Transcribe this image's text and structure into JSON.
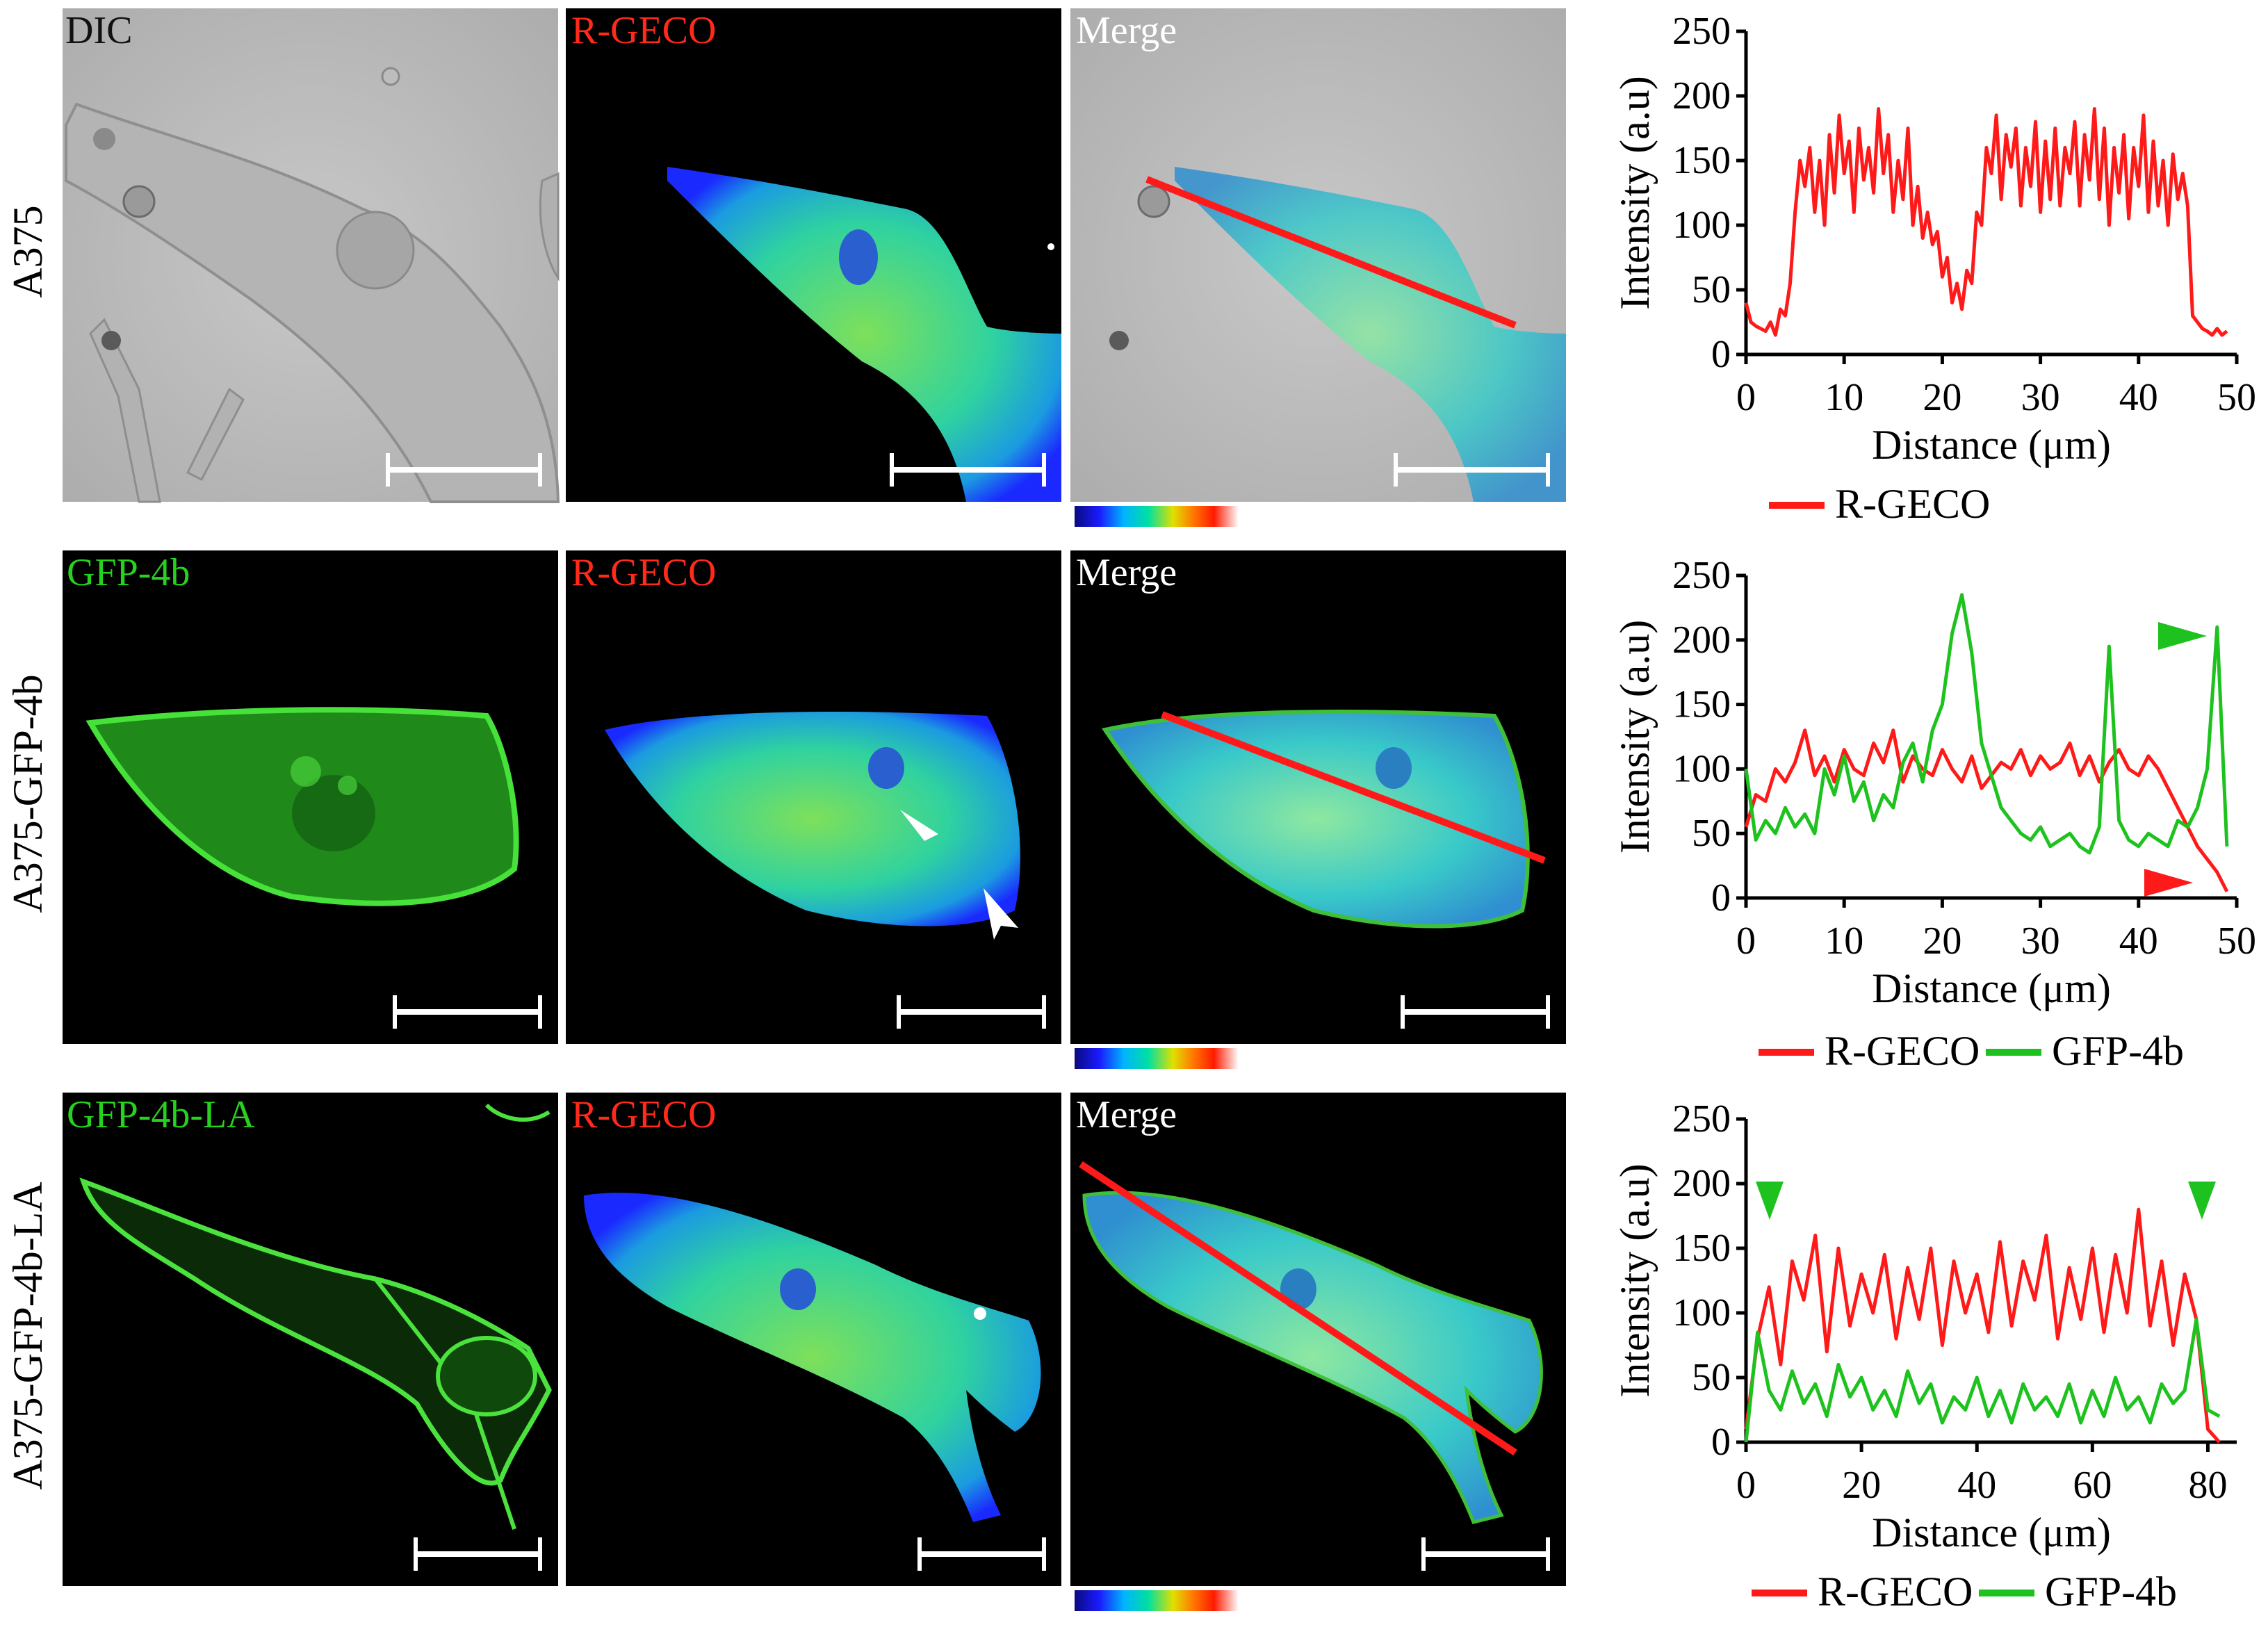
{
  "figure": {
    "rows": [
      {
        "row_label": "A375",
        "panels": [
          {
            "label": "DIC",
            "label_color": "#111111",
            "style": "dic",
            "line": false,
            "arrows": false
          },
          {
            "label": "R-GECO",
            "label_color": "#ff2a1a",
            "style": "rgeco",
            "line": false,
            "arrows": false
          },
          {
            "label": "Merge",
            "label_color": "#ffffff",
            "style": "merge-dic",
            "line": true,
            "arrows": false
          }
        ]
      },
      {
        "row_label": "A375-GFP-4b",
        "panels": [
          {
            "label": "GFP-4b",
            "label_color": "#27d11f",
            "style": "gfp",
            "line": false,
            "arrows": false
          },
          {
            "label": "R-GECO",
            "label_color": "#ff2a1a",
            "style": "rgeco",
            "line": false,
            "arrows": true
          },
          {
            "label": "Merge",
            "label_color": "#ffffff",
            "style": "merge",
            "line": true,
            "arrows": false
          }
        ]
      },
      {
        "row_label": "A375-GFP-4b-LA",
        "panels": [
          {
            "label": "GFP-4b-LA",
            "label_color": "#27d11f",
            "style": "gfp",
            "line": false,
            "arrows": false
          },
          {
            "label": "R-GECO",
            "label_color": "#ff2a1a",
            "style": "rgeco",
            "line": false,
            "arrows": false
          },
          {
            "label": "Merge",
            "label_color": "#ffffff",
            "style": "merge",
            "line": true,
            "arrows": false
          }
        ]
      }
    ],
    "colormap_stops": [
      "#1a1aff",
      "#00b4ff",
      "#00e0a0",
      "#e0e000",
      "#ff7a00",
      "#ff1a00",
      "#ffffff"
    ]
  },
  "chart_data": [
    {
      "type": "line",
      "title": "",
      "xlabel": "Distance (μm)",
      "ylabel": "Intensity (a.u)",
      "xlim": [
        0,
        50
      ],
      "ylim": [
        0,
        250
      ],
      "xticks": [
        0,
        10,
        20,
        30,
        40,
        50
      ],
      "yticks": [
        0,
        50,
        100,
        150,
        200,
        250
      ],
      "series": [
        {
          "name": "R-GECO",
          "color": "#ff1a1a",
          "x": [
            0,
            0.5,
            1,
            1.5,
            2,
            2.5,
            3,
            3.5,
            4,
            4.5,
            5,
            5.5,
            6,
            6.5,
            7,
            7.5,
            8,
            8.5,
            9,
            9.5,
            10,
            10.5,
            11,
            11.5,
            12,
            12.5,
            13,
            13.5,
            14,
            14.5,
            15,
            15.5,
            16,
            16.5,
            17,
            17.5,
            18,
            18.5,
            19,
            19.5,
            20,
            20.5,
            21,
            21.5,
            22,
            22.5,
            23,
            23.5,
            24,
            24.5,
            25,
            25.5,
            26,
            26.5,
            27,
            27.5,
            28,
            28.5,
            29,
            29.5,
            30,
            30.5,
            31,
            31.5,
            32,
            32.5,
            33,
            33.5,
            34,
            34.5,
            35,
            35.5,
            36,
            36.5,
            37,
            37.5,
            38,
            38.5,
            39,
            39.5,
            40,
            40.5,
            41,
            41.5,
            42,
            42.5,
            43,
            43.5,
            44,
            44.5,
            45,
            45.5,
            46,
            46.5,
            47,
            47.5,
            48,
            48.5,
            49
          ],
          "values": [
            40,
            25,
            22,
            20,
            18,
            25,
            15,
            35,
            30,
            55,
            110,
            150,
            130,
            160,
            110,
            150,
            100,
            170,
            125,
            185,
            140,
            165,
            110,
            175,
            135,
            160,
            125,
            190,
            140,
            170,
            110,
            150,
            120,
            175,
            100,
            130,
            90,
            110,
            85,
            95,
            60,
            75,
            40,
            55,
            35,
            65,
            55,
            110,
            100,
            160,
            140,
            185,
            120,
            170,
            145,
            175,
            115,
            160,
            130,
            180,
            110,
            165,
            120,
            175,
            115,
            160,
            140,
            180,
            115,
            170,
            135,
            190,
            120,
            175,
            100,
            160,
            125,
            170,
            105,
            160,
            130,
            185,
            110,
            165,
            115,
            150,
            100,
            155,
            120,
            140,
            115,
            30,
            25,
            20,
            18,
            15,
            20,
            15,
            18
          ]
        }
      ],
      "legend": [
        "R-GECO"
      ]
    },
    {
      "type": "line",
      "title": "",
      "xlabel": "Distance (μm)",
      "ylabel": "Intensity (a.u)",
      "xlim": [
        0,
        50
      ],
      "ylim": [
        0,
        250
      ],
      "xticks": [
        0,
        10,
        20,
        30,
        40,
        50
      ],
      "yticks": [
        0,
        50,
        100,
        150,
        200,
        250
      ],
      "series": [
        {
          "name": "R-GECO",
          "color": "#ff1a1a",
          "x": [
            0,
            1,
            2,
            3,
            4,
            5,
            6,
            7,
            8,
            9,
            10,
            11,
            12,
            13,
            14,
            15,
            16,
            17,
            18,
            19,
            20,
            21,
            22,
            23,
            24,
            25,
            26,
            27,
            28,
            29,
            30,
            31,
            32,
            33,
            34,
            35,
            36,
            37,
            38,
            39,
            40,
            41,
            42,
            43,
            44,
            45,
            46,
            47,
            48,
            49
          ],
          "values": [
            55,
            80,
            75,
            100,
            90,
            105,
            130,
            95,
            110,
            90,
            115,
            100,
            95,
            120,
            105,
            130,
            90,
            110,
            100,
            95,
            115,
            100,
            90,
            110,
            85,
            95,
            105,
            100,
            115,
            95,
            110,
            100,
            105,
            120,
            95,
            110,
            90,
            105,
            115,
            100,
            95,
            110,
            100,
            85,
            70,
            55,
            40,
            30,
            20,
            5
          ]
        },
        {
          "name": "GFP-4b",
          "color": "#1ec21e",
          "x": [
            0,
            1,
            2,
            3,
            4,
            5,
            6,
            7,
            8,
            9,
            10,
            11,
            12,
            13,
            14,
            15,
            16,
            17,
            18,
            19,
            20,
            21,
            22,
            23,
            24,
            25,
            26,
            27,
            28,
            29,
            30,
            31,
            32,
            33,
            34,
            35,
            36,
            37,
            38,
            39,
            40,
            41,
            42,
            43,
            44,
            45,
            46,
            47,
            48,
            49
          ],
          "values": [
            100,
            45,
            60,
            50,
            70,
            55,
            65,
            50,
            100,
            80,
            110,
            75,
            90,
            60,
            80,
            70,
            105,
            120,
            90,
            130,
            150,
            205,
            235,
            190,
            120,
            95,
            70,
            60,
            50,
            45,
            55,
            40,
            45,
            50,
            40,
            35,
            55,
            195,
            60,
            45,
            40,
            50,
            45,
            40,
            60,
            55,
            70,
            100,
            210,
            40
          ]
        }
      ],
      "legend": [
        "R-GECO",
        "GFP-4b"
      ]
    },
    {
      "type": "line",
      "title": "",
      "xlabel": "Distance (μm)",
      "ylabel": "Intensity (a.u)",
      "xlim": [
        0,
        85
      ],
      "ylim": [
        0,
        250
      ],
      "xticks": [
        0,
        20,
        40,
        60,
        80
      ],
      "yticks": [
        0,
        50,
        100,
        150,
        200,
        250
      ],
      "series": [
        {
          "name": "R-GECO",
          "color": "#ff1a1a",
          "x": [
            0,
            2,
            4,
            6,
            8,
            10,
            12,
            14,
            16,
            18,
            20,
            22,
            24,
            26,
            28,
            30,
            32,
            34,
            36,
            38,
            40,
            42,
            44,
            46,
            48,
            50,
            52,
            54,
            56,
            58,
            60,
            62,
            64,
            66,
            68,
            70,
            72,
            74,
            76,
            78,
            80,
            82
          ],
          "values": [
            10,
            80,
            120,
            60,
            140,
            110,
            160,
            70,
            150,
            90,
            130,
            100,
            145,
            80,
            135,
            95,
            150,
            75,
            140,
            100,
            130,
            85,
            155,
            90,
            140,
            110,
            160,
            80,
            135,
            95,
            150,
            85,
            145,
            100,
            180,
            90,
            140,
            75,
            130,
            95,
            10,
            0
          ]
        },
        {
          "name": "GFP-4b",
          "color": "#1ec21e",
          "x": [
            0,
            2,
            4,
            6,
            8,
            10,
            12,
            14,
            16,
            18,
            20,
            22,
            24,
            26,
            28,
            30,
            32,
            34,
            36,
            38,
            40,
            42,
            44,
            46,
            48,
            50,
            52,
            54,
            56,
            58,
            60,
            62,
            64,
            66,
            68,
            70,
            72,
            74,
            76,
            78,
            80,
            82
          ],
          "values": [
            0,
            85,
            40,
            25,
            55,
            30,
            45,
            20,
            60,
            35,
            50,
            25,
            40,
            20,
            55,
            30,
            45,
            15,
            35,
            25,
            50,
            20,
            40,
            15,
            45,
            25,
            35,
            20,
            45,
            15,
            40,
            20,
            50,
            25,
            35,
            15,
            45,
            30,
            40,
            95,
            25,
            20
          ]
        }
      ],
      "legend": [
        "R-GECO",
        "GFP-4b"
      ]
    }
  ]
}
